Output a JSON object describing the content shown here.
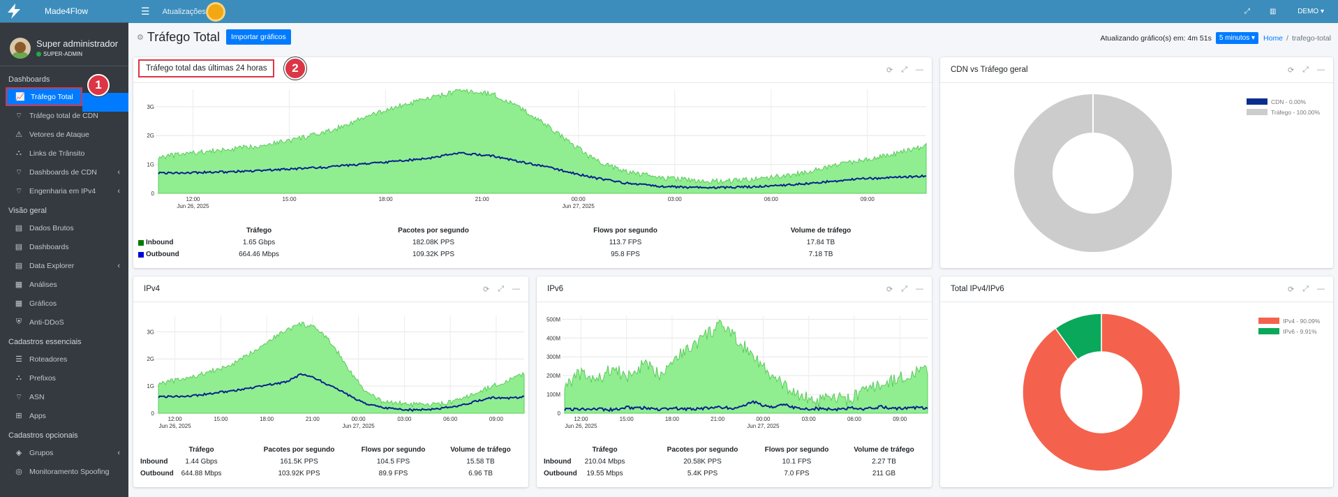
{
  "brand": {
    "name": "Made4Flow"
  },
  "user": {
    "name": "Super administrador",
    "role": "SUPER-ADMIN"
  },
  "sidebar": {
    "sections": [
      {
        "header": "Dashboards",
        "items": [
          {
            "label": "Tráfego Total",
            "icon": "chart-line-icon"
          },
          {
            "label": "Tráfego total de CDN",
            "icon": "broadcast-icon"
          },
          {
            "label": "Vetores de Ataque",
            "icon": "warning-icon"
          },
          {
            "label": "Links de Trânsito",
            "icon": "network-icon"
          },
          {
            "label": "Dashboards de CDN",
            "icon": "broadcast-icon"
          },
          {
            "label": "Engenharia em IPv4",
            "icon": "broadcast-icon"
          }
        ]
      },
      {
        "header": "Visão geral",
        "items": [
          {
            "label": "Dados Brutos",
            "icon": "file-icon"
          },
          {
            "label": "Dashboards",
            "icon": "file-icon"
          },
          {
            "label": "Data Explorer",
            "icon": "file-icon"
          },
          {
            "label": "Análises",
            "icon": "grid-icon"
          },
          {
            "label": "Gráficos",
            "icon": "grid-icon"
          },
          {
            "label": "Anti-DDoS",
            "icon": "shield-icon"
          }
        ]
      },
      {
        "header": "Cadastros essenciais",
        "items": [
          {
            "label": "Roteadores",
            "icon": "server-icon"
          },
          {
            "label": "Prefixos",
            "icon": "network-icon"
          },
          {
            "label": "ASN",
            "icon": "broadcast-icon"
          },
          {
            "label": "Apps",
            "icon": "puzzle-icon"
          }
        ]
      },
      {
        "header": "Cadastros opcionais",
        "items": [
          {
            "label": "Grupos",
            "icon": "layers-icon"
          },
          {
            "label": "Monitoramento Spoofing",
            "icon": "fingerprint-icon"
          }
        ]
      }
    ]
  },
  "topbar": {
    "updates": "Atualizações",
    "company": "DEMO"
  },
  "header": {
    "title": "Tráfego Total",
    "import_button": "Importar gráficos",
    "refresh_label": "Atualizando gráfico(s) em: 4m 51s",
    "interval": "5 minutos",
    "breadcrumb_home": "Home",
    "breadcrumb_sep": "/",
    "breadcrumb_current": "trafego-total"
  },
  "annotations": {
    "one": "1",
    "two": "2"
  },
  "colors": {
    "inbound_fill": "#90ee90",
    "inbound_line": "#5cc95c",
    "outbound_line": "#0a1f8f",
    "inbound_sq": "#007a00",
    "outbound_sq": "#0000dd",
    "cdn": "#0a2d8c",
    "traffic": "#cccccc",
    "ipv4": "#f4624d",
    "ipv6": "#0aa85a"
  },
  "table_headers": {
    "traffic": "Tráfego",
    "pps": "Pacotes por segundo",
    "fps": "Flows por segundo",
    "volume": "Volume de tráfego"
  },
  "cards": {
    "total": {
      "title": "Tráfego total das últimas 24 horas",
      "rows": [
        {
          "name": "Inbound",
          "traffic": "1.65 Gbps",
          "pps": "182.08K PPS",
          "fps": "113.7 FPS",
          "volume": "17.84 TB"
        },
        {
          "name": "Outbound",
          "traffic": "664.46 Mbps",
          "pps": "109.32K PPS",
          "fps": "95.8 FPS",
          "volume": "7.18 TB"
        }
      ]
    },
    "cdn": {
      "title": "CDN vs Tráfego geral",
      "legend": [
        "CDN - 0.00%",
        "Tráfego - 100.00%"
      ]
    },
    "ipv4": {
      "title": "IPv4",
      "rows": [
        {
          "name": "Inbound",
          "traffic": "1.44 Gbps",
          "pps": "161.5K PPS",
          "fps": "104.5 FPS",
          "volume": "15.58 TB"
        },
        {
          "name": "Outbound",
          "traffic": "644.88 Mbps",
          "pps": "103.92K PPS",
          "fps": "89.9 FPS",
          "volume": "6.96 TB"
        }
      ]
    },
    "ipv6": {
      "title": "IPv6",
      "rows": [
        {
          "name": "Inbound",
          "traffic": "210.04 Mbps",
          "pps": "20.58K PPS",
          "fps": "10.1 FPS",
          "volume": "2.27 TB"
        },
        {
          "name": "Outbound",
          "traffic": "19.55 Mbps",
          "pps": "5.4K PPS",
          "fps": "7.0 FPS",
          "volume": "211 GB"
        }
      ]
    },
    "ipvsplit": {
      "title": "Total IPv4/IPv6",
      "legend": [
        "IPv4 - 90.09%",
        "IPv6 - 9.91%"
      ]
    }
  },
  "chart_data": [
    {
      "type": "area",
      "id": "total",
      "title": "Tráfego total das últimas 24 horas",
      "ylim": [
        0,
        3.6
      ],
      "yticks": [
        "0",
        "1G",
        "2G",
        "3G"
      ],
      "ytick_values": [
        0,
        1,
        2,
        3
      ],
      "xticks": [
        "12:00",
        "15:00",
        "18:00",
        "21:00",
        "00:00",
        "03:00",
        "06:00",
        "09:00"
      ],
      "xdates": [
        "Jun 26, 2025",
        "Jun 27, 2025"
      ],
      "series": [
        {
          "name": "Inbound",
          "values": [
            1.25,
            1.4,
            1.5,
            1.65,
            1.85,
            2.1,
            2.55,
            2.95,
            3.25,
            3.55,
            3.45,
            2.85,
            2.05,
            1.2,
            0.75,
            0.55,
            0.45,
            0.42,
            0.5,
            0.65,
            0.9,
            1.15,
            1.35,
            1.65
          ]
        },
        {
          "name": "Outbound",
          "values": [
            0.7,
            0.72,
            0.74,
            0.78,
            0.85,
            0.9,
            1.0,
            1.1,
            1.2,
            1.4,
            1.3,
            1.05,
            0.82,
            0.55,
            0.35,
            0.25,
            0.2,
            0.2,
            0.24,
            0.3,
            0.4,
            0.5,
            0.55,
            0.6
          ]
        }
      ]
    },
    {
      "type": "area",
      "id": "ipv4",
      "title": "IPv4",
      "ylim": [
        0,
        3.6
      ],
      "yticks": [
        "0",
        "1G",
        "2G",
        "3G"
      ],
      "ytick_values": [
        0,
        1,
        2,
        3
      ],
      "xticks": [
        "12:00",
        "15:00",
        "18:00",
        "21:00",
        "00:00",
        "03:00",
        "06:00",
        "09:00"
      ],
      "xdates": [
        "Jun 26, 2025",
        "Jun 27, 2025"
      ],
      "series": [
        {
          "name": "Inbound",
          "values": [
            1.1,
            1.2,
            1.3,
            1.5,
            1.65,
            1.9,
            2.3,
            2.7,
            3.05,
            3.3,
            3.1,
            2.5,
            1.6,
            0.8,
            0.45,
            0.38,
            0.32,
            0.3,
            0.36,
            0.5,
            0.75,
            1.0,
            1.2,
            1.45
          ]
        },
        {
          "name": "Outbound",
          "values": [
            0.6,
            0.62,
            0.64,
            0.7,
            0.78,
            0.85,
            0.95,
            1.05,
            1.15,
            1.45,
            1.25,
            0.95,
            0.65,
            0.35,
            0.22,
            0.15,
            0.12,
            0.14,
            0.2,
            0.28,
            0.45,
            0.58,
            0.55,
            0.6
          ]
        }
      ]
    },
    {
      "type": "area",
      "id": "ipv6",
      "title": "IPv6",
      "ylim": [
        0,
        520
      ],
      "yticks": [
        "0",
        "100M",
        "200M",
        "300M",
        "400M",
        "500M"
      ],
      "ytick_values": [
        0,
        100,
        200,
        300,
        400,
        500
      ],
      "xticks": [
        "12:00",
        "15:00",
        "18:00",
        "21:00",
        "00:00",
        "03:00",
        "06:00",
        "09:00"
      ],
      "xdates": [
        "Jun 26, 2025",
        "Jun 27, 2025"
      ],
      "series": [
        {
          "name": "Inbound",
          "values": [
            150,
            210,
            170,
            240,
            190,
            260,
            210,
            300,
            350,
            420,
            470,
            380,
            310,
            200,
            140,
            90,
            60,
            80,
            70,
            120,
            150,
            180,
            210,
            230
          ]
        },
        {
          "name": "Outbound",
          "values": [
            20,
            22,
            25,
            18,
            30,
            28,
            20,
            25,
            22,
            28,
            30,
            26,
            60,
            30,
            45,
            20,
            25,
            20,
            28,
            22,
            35,
            25,
            30,
            28
          ]
        }
      ]
    },
    {
      "type": "pie",
      "id": "cdn",
      "title": "CDN vs Tráfego geral",
      "labels": [
        "CDN",
        "Tráfego"
      ],
      "values": [
        0.0,
        100.0
      ]
    },
    {
      "type": "pie",
      "id": "ipvsplit",
      "title": "Total IPv4/IPv6",
      "labels": [
        "IPv4",
        "IPv6"
      ],
      "values": [
        90.09,
        9.91
      ]
    }
  ]
}
